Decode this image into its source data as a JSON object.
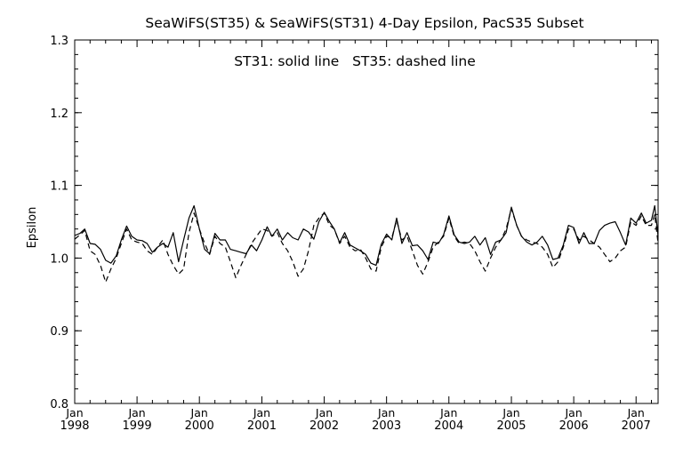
{
  "chart_data": {
    "type": "line",
    "title": "SeaWiFS(ST35) & SeaWiFS(ST31) 4-Day Epsilon, PacS35 Subset",
    "annotation": "ST31: solid line   ST35: dashed line",
    "xlabel": "",
    "ylabel": "Epsilon",
    "xlim": [
      "1998-01-01",
      "2007-05-10"
    ],
    "ylim": [
      0.8,
      1.3
    ],
    "yticks": [
      "0.8",
      "0.9",
      "1.0",
      "1.1",
      "1.2",
      "1.3"
    ],
    "xticks": [
      {
        "month": "Jan",
        "year": "1998",
        "date": "1998-01-01"
      },
      {
        "month": "Jan",
        "year": "1999",
        "date": "1999-01-01"
      },
      {
        "month": "Jan",
        "year": "2000",
        "date": "2000-01-01"
      },
      {
        "month": "Jan",
        "year": "2001",
        "date": "2001-01-01"
      },
      {
        "month": "Jan",
        "year": "2002",
        "date": "2002-01-01"
      },
      {
        "month": "Jan",
        "year": "2003",
        "date": "2003-01-01"
      },
      {
        "month": "Jan",
        "year": "2004",
        "date": "2004-01-01"
      },
      {
        "month": "Jan",
        "year": "2005",
        "date": "2005-01-01"
      },
      {
        "month": "Jan",
        "year": "2006",
        "date": "2006-01-01"
      },
      {
        "month": "Jan",
        "year": "2007",
        "date": "2007-01-01"
      }
    ],
    "grid": false,
    "series": [
      {
        "name": "ST31",
        "style": "solid",
        "color": "#000000",
        "points": [
          [
            "1998-01-01",
            1.031
          ],
          [
            "1998-02-01",
            1.034
          ],
          [
            "1998-03-01",
            1.04
          ],
          [
            "1998-04-01",
            1.02
          ],
          [
            "1998-05-01",
            1.019
          ],
          [
            "1998-06-01",
            1.012
          ],
          [
            "1998-07-01",
            0.997
          ],
          [
            "1998-08-01",
            0.993
          ],
          [
            "1998-09-01",
            1.003
          ],
          [
            "1998-10-01",
            1.025
          ],
          [
            "1998-11-01",
            1.044
          ],
          [
            "1998-12-01",
            1.03
          ],
          [
            "1999-01-01",
            1.025
          ],
          [
            "1999-02-01",
            1.024
          ],
          [
            "1999-03-01",
            1.02
          ],
          [
            "1999-04-01",
            1.008
          ],
          [
            "1999-05-01",
            1.015
          ],
          [
            "1999-06-01",
            1.02
          ],
          [
            "1999-07-01",
            1.015
          ],
          [
            "1999-08-01",
            1.035
          ],
          [
            "1999-09-01",
            0.995
          ],
          [
            "1999-10-01",
            1.025
          ],
          [
            "1999-11-01",
            1.055
          ],
          [
            "1999-12-01",
            1.072
          ],
          [
            "2000-01-01",
            1.04
          ],
          [
            "2000-02-01",
            1.012
          ],
          [
            "2000-03-01",
            1.006
          ],
          [
            "2000-04-01",
            1.034
          ],
          [
            "2000-05-01",
            1.025
          ],
          [
            "2000-06-01",
            1.025
          ],
          [
            "2000-07-01",
            1.012
          ],
          [
            "2000-08-01",
            1.01
          ],
          [
            "2000-09-01",
            1.008
          ],
          [
            "2000-10-01",
            1.006
          ],
          [
            "2000-11-01",
            1.018
          ],
          [
            "2000-12-01",
            1.01
          ],
          [
            "2001-01-01",
            1.025
          ],
          [
            "2001-02-01",
            1.043
          ],
          [
            "2001-03-01",
            1.03
          ],
          [
            "2001-04-01",
            1.04
          ],
          [
            "2001-05-01",
            1.025
          ],
          [
            "2001-06-01",
            1.035
          ],
          [
            "2001-07-01",
            1.028
          ],
          [
            "2001-08-01",
            1.025
          ],
          [
            "2001-09-01",
            1.04
          ],
          [
            "2001-10-01",
            1.036
          ],
          [
            "2001-11-01",
            1.026
          ],
          [
            "2001-12-01",
            1.05
          ],
          [
            "2002-01-01",
            1.063
          ],
          [
            "2002-02-01",
            1.05
          ],
          [
            "2002-03-01",
            1.04
          ],
          [
            "2002-04-01",
            1.021
          ],
          [
            "2002-05-01",
            1.035
          ],
          [
            "2002-06-01",
            1.018
          ],
          [
            "2002-07-01",
            1.014
          ],
          [
            "2002-08-01",
            1.01
          ],
          [
            "2002-09-01",
            1.005
          ],
          [
            "2002-10-01",
            0.993
          ],
          [
            "2002-11-01",
            0.99
          ],
          [
            "2002-12-01",
            1.019
          ],
          [
            "2003-01-01",
            1.033
          ],
          [
            "2003-02-01",
            1.025
          ],
          [
            "2003-03-01",
            1.055
          ],
          [
            "2003-04-01",
            1.02
          ],
          [
            "2003-05-01",
            1.035
          ],
          [
            "2003-06-01",
            1.017
          ],
          [
            "2003-07-01",
            1.018
          ],
          [
            "2003-08-01",
            1.01
          ],
          [
            "2003-09-01",
            0.998
          ],
          [
            "2003-10-01",
            1.022
          ],
          [
            "2003-11-01",
            1.02
          ],
          [
            "2003-12-01",
            1.032
          ],
          [
            "2004-01-01",
            1.058
          ],
          [
            "2004-02-01",
            1.032
          ],
          [
            "2004-03-01",
            1.022
          ],
          [
            "2004-04-01",
            1.02
          ],
          [
            "2004-05-01",
            1.022
          ],
          [
            "2004-06-01",
            1.03
          ],
          [
            "2004-07-01",
            1.018
          ],
          [
            "2004-08-01",
            1.028
          ],
          [
            "2004-09-01",
            1.005
          ],
          [
            "2004-10-01",
            1.022
          ],
          [
            "2004-11-01",
            1.025
          ],
          [
            "2004-12-01",
            1.035
          ],
          [
            "2005-01-01",
            1.07
          ],
          [
            "2005-02-01",
            1.045
          ],
          [
            "2005-03-01",
            1.03
          ],
          [
            "2005-04-01",
            1.022
          ],
          [
            "2005-05-01",
            1.018
          ],
          [
            "2005-06-01",
            1.022
          ],
          [
            "2005-07-01",
            1.03
          ],
          [
            "2005-08-01",
            1.018
          ],
          [
            "2005-09-01",
            0.998
          ],
          [
            "2005-10-01",
            1.0
          ],
          [
            "2005-11-01",
            1.018
          ],
          [
            "2005-12-01",
            1.045
          ],
          [
            "2006-01-01",
            1.042
          ],
          [
            "2006-02-01",
            1.02
          ],
          [
            "2006-03-01",
            1.035
          ],
          [
            "2006-04-01",
            1.02
          ],
          [
            "2006-05-01",
            1.02
          ],
          [
            "2006-06-01",
            1.038
          ],
          [
            "2006-07-01",
            1.045
          ],
          [
            "2006-08-01",
            1.048
          ],
          [
            "2006-09-01",
            1.05
          ],
          [
            "2006-10-01",
            1.035
          ],
          [
            "2006-11-01",
            1.018
          ],
          [
            "2006-12-01",
            1.055
          ],
          [
            "2007-01-01",
            1.048
          ],
          [
            "2007-02-01",
            1.062
          ],
          [
            "2007-03-01",
            1.048
          ],
          [
            "2007-04-01",
            1.052
          ],
          [
            "2007-04-20",
            1.072
          ],
          [
            "2007-05-10",
            1.03
          ]
        ]
      },
      {
        "name": "ST35",
        "style": "dashed",
        "color": "#000000",
        "points": [
          [
            "1998-01-01",
            1.026
          ],
          [
            "1998-02-01",
            1.032
          ],
          [
            "1998-03-01",
            1.038
          ],
          [
            "1998-04-01",
            1.01
          ],
          [
            "1998-05-01",
            1.005
          ],
          [
            "1998-06-01",
            0.99
          ],
          [
            "1998-07-01",
            0.967
          ],
          [
            "1998-08-01",
            0.985
          ],
          [
            "1998-09-01",
            1.0
          ],
          [
            "1998-10-01",
            1.02
          ],
          [
            "1998-11-01",
            1.04
          ],
          [
            "1998-12-01",
            1.025
          ],
          [
            "1999-01-01",
            1.022
          ],
          [
            "1999-02-01",
            1.02
          ],
          [
            "1999-03-01",
            1.01
          ],
          [
            "1999-04-01",
            1.005
          ],
          [
            "1999-05-01",
            1.015
          ],
          [
            "1999-06-01",
            1.025
          ],
          [
            "1999-07-01",
            1.005
          ],
          [
            "1999-08-01",
            0.99
          ],
          [
            "1999-09-01",
            0.978
          ],
          [
            "1999-10-01",
            0.985
          ],
          [
            "1999-11-01",
            1.035
          ],
          [
            "1999-12-01",
            1.062
          ],
          [
            "2000-01-01",
            1.04
          ],
          [
            "2000-02-01",
            1.02
          ],
          [
            "2000-03-01",
            1.005
          ],
          [
            "2000-04-01",
            1.03
          ],
          [
            "2000-05-01",
            1.02
          ],
          [
            "2000-06-01",
            1.015
          ],
          [
            "2000-07-01",
            0.995
          ],
          [
            "2000-08-01",
            0.973
          ],
          [
            "2000-09-01",
            0.99
          ],
          [
            "2000-10-01",
            1.005
          ],
          [
            "2000-11-01",
            1.02
          ],
          [
            "2000-12-01",
            1.03
          ],
          [
            "2001-01-01",
            1.04
          ],
          [
            "2001-02-01",
            1.038
          ],
          [
            "2001-03-01",
            1.03
          ],
          [
            "2001-04-01",
            1.035
          ],
          [
            "2001-05-01",
            1.02
          ],
          [
            "2001-06-01",
            1.01
          ],
          [
            "2001-07-01",
            0.995
          ],
          [
            "2001-08-01",
            0.975
          ],
          [
            "2001-09-01",
            0.985
          ],
          [
            "2001-10-01",
            1.01
          ],
          [
            "2001-11-01",
            1.045
          ],
          [
            "2001-12-01",
            1.055
          ],
          [
            "2002-01-01",
            1.062
          ],
          [
            "2002-02-01",
            1.045
          ],
          [
            "2002-03-01",
            1.04
          ],
          [
            "2002-04-01",
            1.02
          ],
          [
            "2002-05-01",
            1.03
          ],
          [
            "2002-06-01",
            1.015
          ],
          [
            "2002-07-01",
            1.01
          ],
          [
            "2002-08-01",
            1.012
          ],
          [
            "2002-09-01",
            1.0
          ],
          [
            "2002-10-01",
            0.985
          ],
          [
            "2002-11-01",
            0.982
          ],
          [
            "2002-12-01",
            1.015
          ],
          [
            "2003-01-01",
            1.03
          ],
          [
            "2003-02-01",
            1.028
          ],
          [
            "2003-03-01",
            1.052
          ],
          [
            "2003-04-01",
            1.025
          ],
          [
            "2003-05-01",
            1.03
          ],
          [
            "2003-06-01",
            1.01
          ],
          [
            "2003-07-01",
            0.99
          ],
          [
            "2003-08-01",
            0.978
          ],
          [
            "2003-09-01",
            0.995
          ],
          [
            "2003-10-01",
            1.015
          ],
          [
            "2003-11-01",
            1.022
          ],
          [
            "2003-12-01",
            1.03
          ],
          [
            "2004-01-01",
            1.055
          ],
          [
            "2004-02-01",
            1.03
          ],
          [
            "2004-03-01",
            1.02
          ],
          [
            "2004-04-01",
            1.022
          ],
          [
            "2004-05-01",
            1.02
          ],
          [
            "2004-06-01",
            1.01
          ],
          [
            "2004-07-01",
            0.995
          ],
          [
            "2004-08-01",
            0.982
          ],
          [
            "2004-09-01",
            1.0
          ],
          [
            "2004-10-01",
            1.015
          ],
          [
            "2004-11-01",
            1.025
          ],
          [
            "2004-12-01",
            1.04
          ],
          [
            "2005-01-01",
            1.068
          ],
          [
            "2005-02-01",
            1.045
          ],
          [
            "2005-03-01",
            1.03
          ],
          [
            "2005-04-01",
            1.025
          ],
          [
            "2005-05-01",
            1.022
          ],
          [
            "2005-06-01",
            1.02
          ],
          [
            "2005-07-01",
            1.015
          ],
          [
            "2005-08-01",
            1.005
          ],
          [
            "2005-09-01",
            0.987
          ],
          [
            "2005-10-01",
            0.995
          ],
          [
            "2005-11-01",
            1.015
          ],
          [
            "2005-12-01",
            1.04
          ],
          [
            "2006-01-01",
            1.04
          ],
          [
            "2006-02-01",
            1.025
          ],
          [
            "2006-03-01",
            1.03
          ],
          [
            "2006-04-01",
            1.025
          ],
          [
            "2006-05-01",
            1.02
          ],
          [
            "2006-06-01",
            1.015
          ],
          [
            "2006-07-01",
            1.005
          ],
          [
            "2006-08-01",
            0.995
          ],
          [
            "2006-09-01",
            1.0
          ],
          [
            "2006-10-01",
            1.01
          ],
          [
            "2006-11-01",
            1.015
          ],
          [
            "2006-12-01",
            1.05
          ],
          [
            "2007-01-01",
            1.045
          ],
          [
            "2007-02-01",
            1.058
          ],
          [
            "2007-03-01",
            1.045
          ],
          [
            "2007-04-01",
            1.045
          ],
          [
            "2007-04-20",
            1.06
          ],
          [
            "2007-05-10",
            1.02
          ]
        ]
      }
    ]
  }
}
